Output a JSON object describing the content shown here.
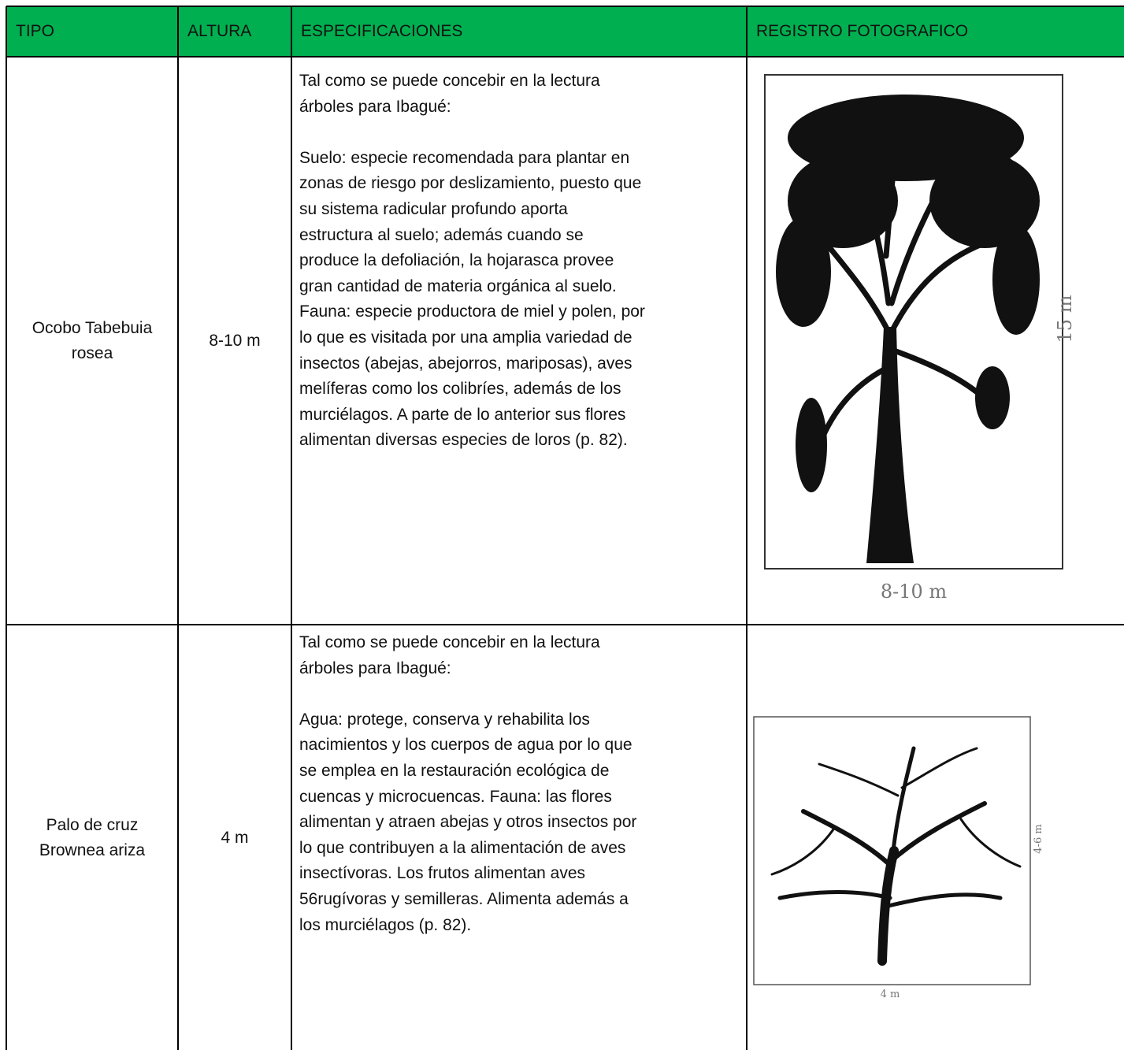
{
  "header": {
    "tipo": "TIPO",
    "altura": "ALTURA",
    "especificaciones": "ESPECIFICACIONES",
    "registro": "REGISTRO FOTOGRAFICO"
  },
  "table": {
    "rows": [
      {
        "tipo": "Ocobo Tabebuia rosea",
        "altura": "8-10 m",
        "especificaciones": [
          [
            "Tal como se puede concebir en la lectura",
            "árboles para Ibagué:"
          ],
          [
            "Suelo: especie recomendada para plantar en",
            "zonas de riesgo por deslizamiento, puesto que",
            "su sistema radicular profundo aporta",
            "estructura al suelo; además cuando se",
            "produce la defoliación, la hojarasca provee",
            "gran cantidad de materia orgánica al suelo.",
            "Fauna: especie productora de miel y polen, por",
            "lo que es visitada por una amplia variedad de",
            "insectos (abejas, abejorros, mariposas), aves",
            "melíferas como los colibríes, además de los",
            "murciélagos. A parte de lo anterior sus flores",
            "alimentan diversas especies de loros (p. 82)."
          ]
        ],
        "imagen": {
          "alto": "15 m",
          "ancho": "8-10 m"
        }
      },
      {
        "tipo": "Palo de cruz Brownea ariza",
        "altura": "4 m",
        "especificaciones": [
          [
            "Tal como se puede concebir en la lectura",
            "árboles para Ibagué:"
          ],
          [
            "Agua: protege, conserva y rehabilita los",
            "nacimientos y los cuerpos de agua por lo que",
            "se emplea en la restauración ecológica de",
            "cuencas y microcuencas. Fauna: las flores",
            "alimentan y atraen abejas y otros insectos por",
            "lo que contribuyen a la alimentación de aves",
            "insectívoras. Los frutos alimentan aves",
            "56rugívoras y semilleras. Alimenta además a",
            "los murciélagos (p. 82)."
          ]
        ],
        "imagen": {
          "alto": "4-6 m",
          "ancho": "4 m"
        }
      }
    ]
  }
}
